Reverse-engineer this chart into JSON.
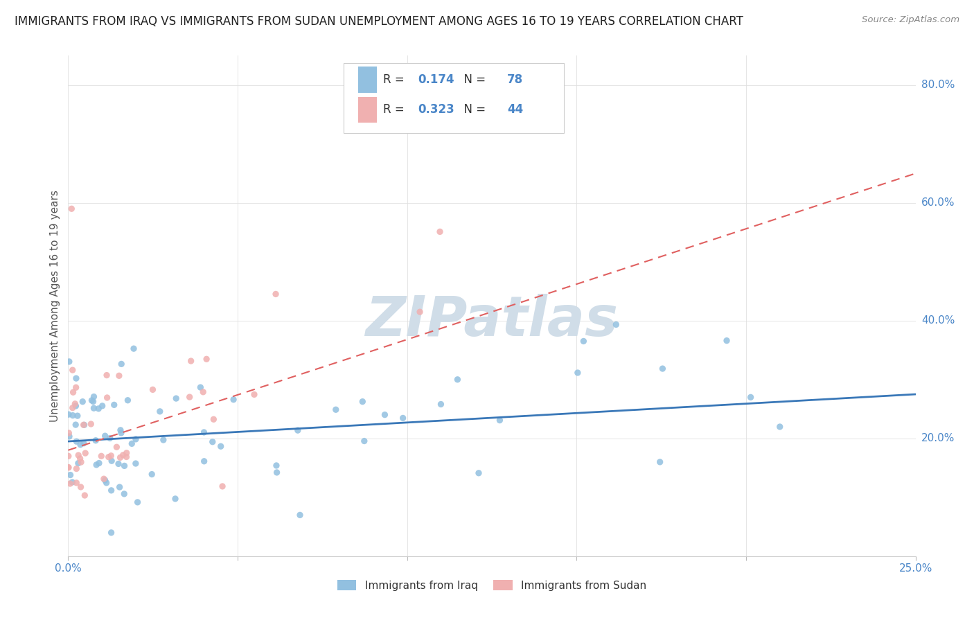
{
  "title": "IMMIGRANTS FROM IRAQ VS IMMIGRANTS FROM SUDAN UNEMPLOYMENT AMONG AGES 16 TO 19 YEARS CORRELATION CHART",
  "source": "Source: ZipAtlas.com",
  "ylabel": "Unemployment Among Ages 16 to 19 years",
  "xlim": [
    0.0,
    0.25
  ],
  "ylim": [
    0.0,
    0.85
  ],
  "iraq_color": "#92c0e0",
  "sudan_color": "#f0b0b0",
  "iraq_line_color": "#3a78b8",
  "sudan_line_color": "#e06060",
  "watermark": "ZIPatlas",
  "watermark_color": "#d0dde8",
  "legend_iraq_label": "Immigrants from Iraq",
  "legend_sudan_label": "Immigrants from Sudan",
  "R_iraq": 0.174,
  "N_iraq": 78,
  "R_sudan": 0.323,
  "N_sudan": 44,
  "tick_color": "#4a86c8",
  "ylabel_color": "#555555",
  "title_fontsize": 12,
  "axis_label_fontsize": 11,
  "legend_fontsize": 12,
  "seed": 12345
}
